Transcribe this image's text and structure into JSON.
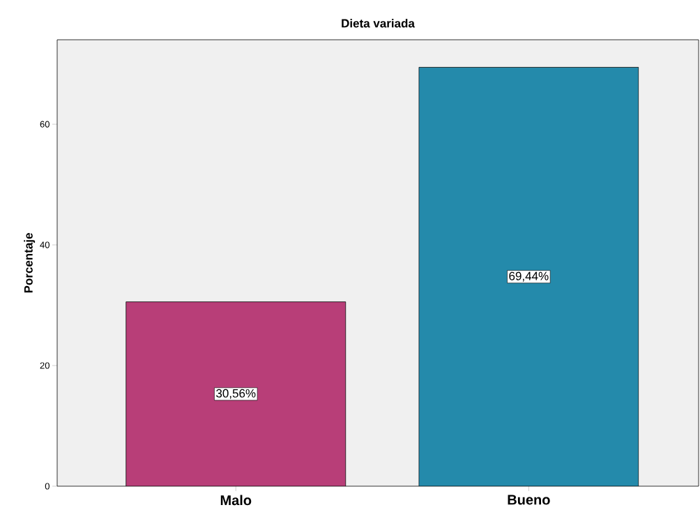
{
  "chart_data": {
    "type": "bar",
    "title": "Dieta variada",
    "ylabel": "Porcentaje",
    "categories": [
      "Malo",
      "Bueno"
    ],
    "values": [
      30.56,
      69.44
    ],
    "value_labels": [
      "30,56%",
      "69,44%"
    ],
    "colors": [
      "#b83e78",
      "#248aab"
    ],
    "ylim": [
      0,
      74
    ],
    "yticks": [
      0,
      20,
      40,
      60
    ]
  }
}
